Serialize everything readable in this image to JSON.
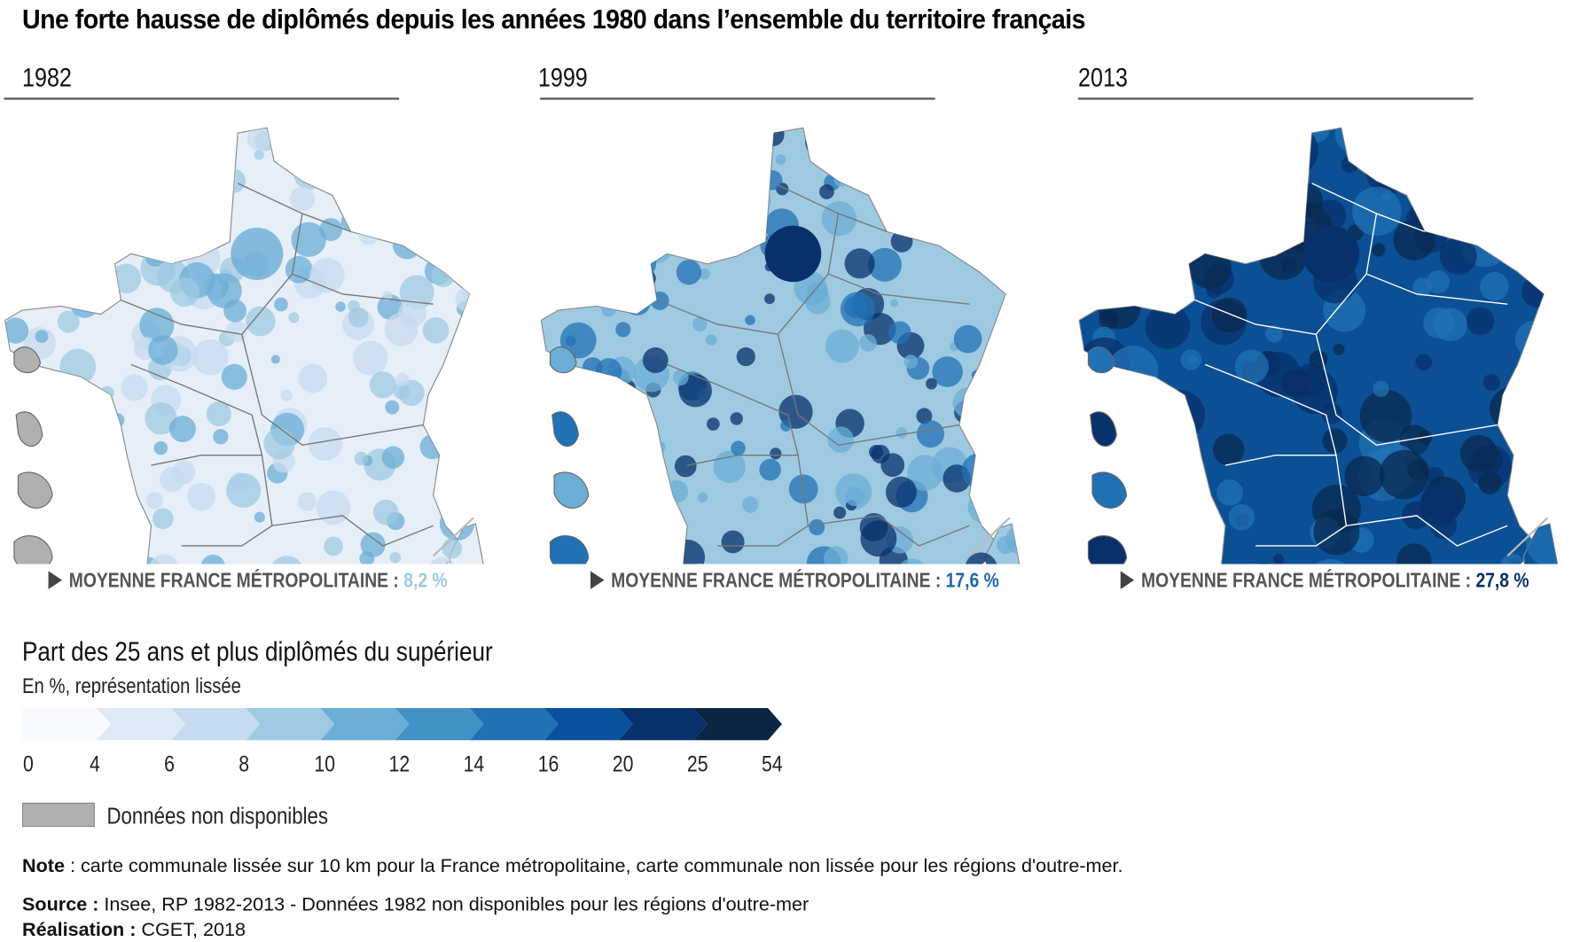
{
  "title": "Une forte hausse de diplômés depuis les années 1980 dans l’ensemble du territoire français",
  "maps": [
    {
      "year": "1982",
      "avg_label": "MOYENNE FRANCE MÉTROPOLITAINE :",
      "avg_value": "8,2 %",
      "avg_color": "#9ecae1",
      "base": "#e6eff8",
      "spot": [
        "#c6dbef",
        "#9ecae1",
        "#6baed6"
      ],
      "border": "#777777",
      "overseas_gray": true
    },
    {
      "year": "1999",
      "avg_label": "MOYENNE FRANCE MÉTROPOLITAINE :",
      "avg_value": "17,6 %",
      "avg_color": "#2166ac",
      "base": "#9ecae1",
      "spot": [
        "#6baed6",
        "#2171b5",
        "#08306b"
      ],
      "border": "#777777",
      "overseas_gray": false
    },
    {
      "year": "2013",
      "avg_label": "MOYENNE FRANCE MÉTROPOLITAINE :",
      "avg_value": "27,8 %",
      "avg_color": "#08306b",
      "base": "#0b4f94",
      "spot": [
        "#2171b5",
        "#08306b",
        "#0a2a4f"
      ],
      "border": "#ffffff",
      "overseas_gray": false
    }
  ],
  "legend": {
    "title": "Part des 25 ans et plus diplômés du supérieur",
    "subtitle": "En %, représentation lissée",
    "colors": [
      "#f7fbff",
      "#deebf7",
      "#c6dbef",
      "#9ecae1",
      "#6baed6",
      "#4292c6",
      "#2171b5",
      "#08519c",
      "#08306b",
      "#0a2642"
    ],
    "ticks": [
      "0",
      "4",
      "6",
      "8",
      "10",
      "12",
      "14",
      "16",
      "20",
      "25",
      "54"
    ],
    "na_label": "Données non disponibles",
    "na_color": "#b0b0b0"
  },
  "footer": {
    "note_label": "Note",
    "note_text": " : carte communale lissée sur 10 km pour la France métropolitaine, carte communale non lissée pour les régions d'outre-mer.",
    "source_label": "Source :",
    "source_text": " Insee, RP 1982-2013 - Données 1982 non disponibles pour les régions d'outre-mer",
    "credit_label": "Réalisation :",
    "credit_text": " CGET, 2018"
  }
}
